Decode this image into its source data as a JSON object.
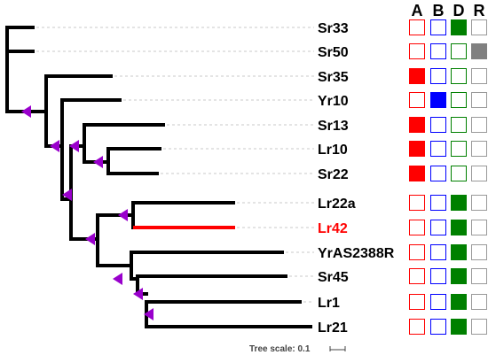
{
  "columns": [
    "A",
    "B",
    "D",
    "R"
  ],
  "column_colors": {
    "A": "#ff0000",
    "B": "#0000ff",
    "D": "#008000",
    "R": "#808080"
  },
  "highlight_color": "#ff0000",
  "node_marker_color": "#9900cc",
  "leaves": [
    {
      "name": "Sr33",
      "highlight": false,
      "A": false,
      "B": false,
      "D": true,
      "R": false
    },
    {
      "name": "Sr50",
      "highlight": false,
      "A": false,
      "B": false,
      "D": false,
      "R": true
    },
    {
      "name": "Sr35",
      "highlight": false,
      "A": true,
      "B": false,
      "D": false,
      "R": false
    },
    {
      "name": "Yr10",
      "highlight": false,
      "A": false,
      "B": true,
      "D": false,
      "R": false
    },
    {
      "name": "Sr13",
      "highlight": false,
      "A": true,
      "B": false,
      "D": false,
      "R": false
    },
    {
      "name": "Lr10",
      "highlight": false,
      "A": true,
      "B": false,
      "D": false,
      "R": false
    },
    {
      "name": "Sr22",
      "highlight": false,
      "A": true,
      "B": false,
      "D": false,
      "R": false
    },
    {
      "name": "Lr22a",
      "highlight": false,
      "A": false,
      "B": false,
      "D": true,
      "R": false
    },
    {
      "name": "Lr42",
      "highlight": true,
      "A": false,
      "B": false,
      "D": true,
      "R": false
    },
    {
      "name": "YrAS2388R",
      "highlight": false,
      "A": false,
      "B": false,
      "D": true,
      "R": false
    },
    {
      "name": "Sr45",
      "highlight": false,
      "A": false,
      "B": false,
      "D": true,
      "R": false
    },
    {
      "name": "Lr1",
      "highlight": false,
      "A": false,
      "B": false,
      "D": true,
      "R": false
    },
    {
      "name": "Lr21",
      "highlight": false,
      "A": false,
      "B": false,
      "D": true,
      "R": false
    }
  ],
  "tree_scale_label": "Tree scale: 0.1"
}
